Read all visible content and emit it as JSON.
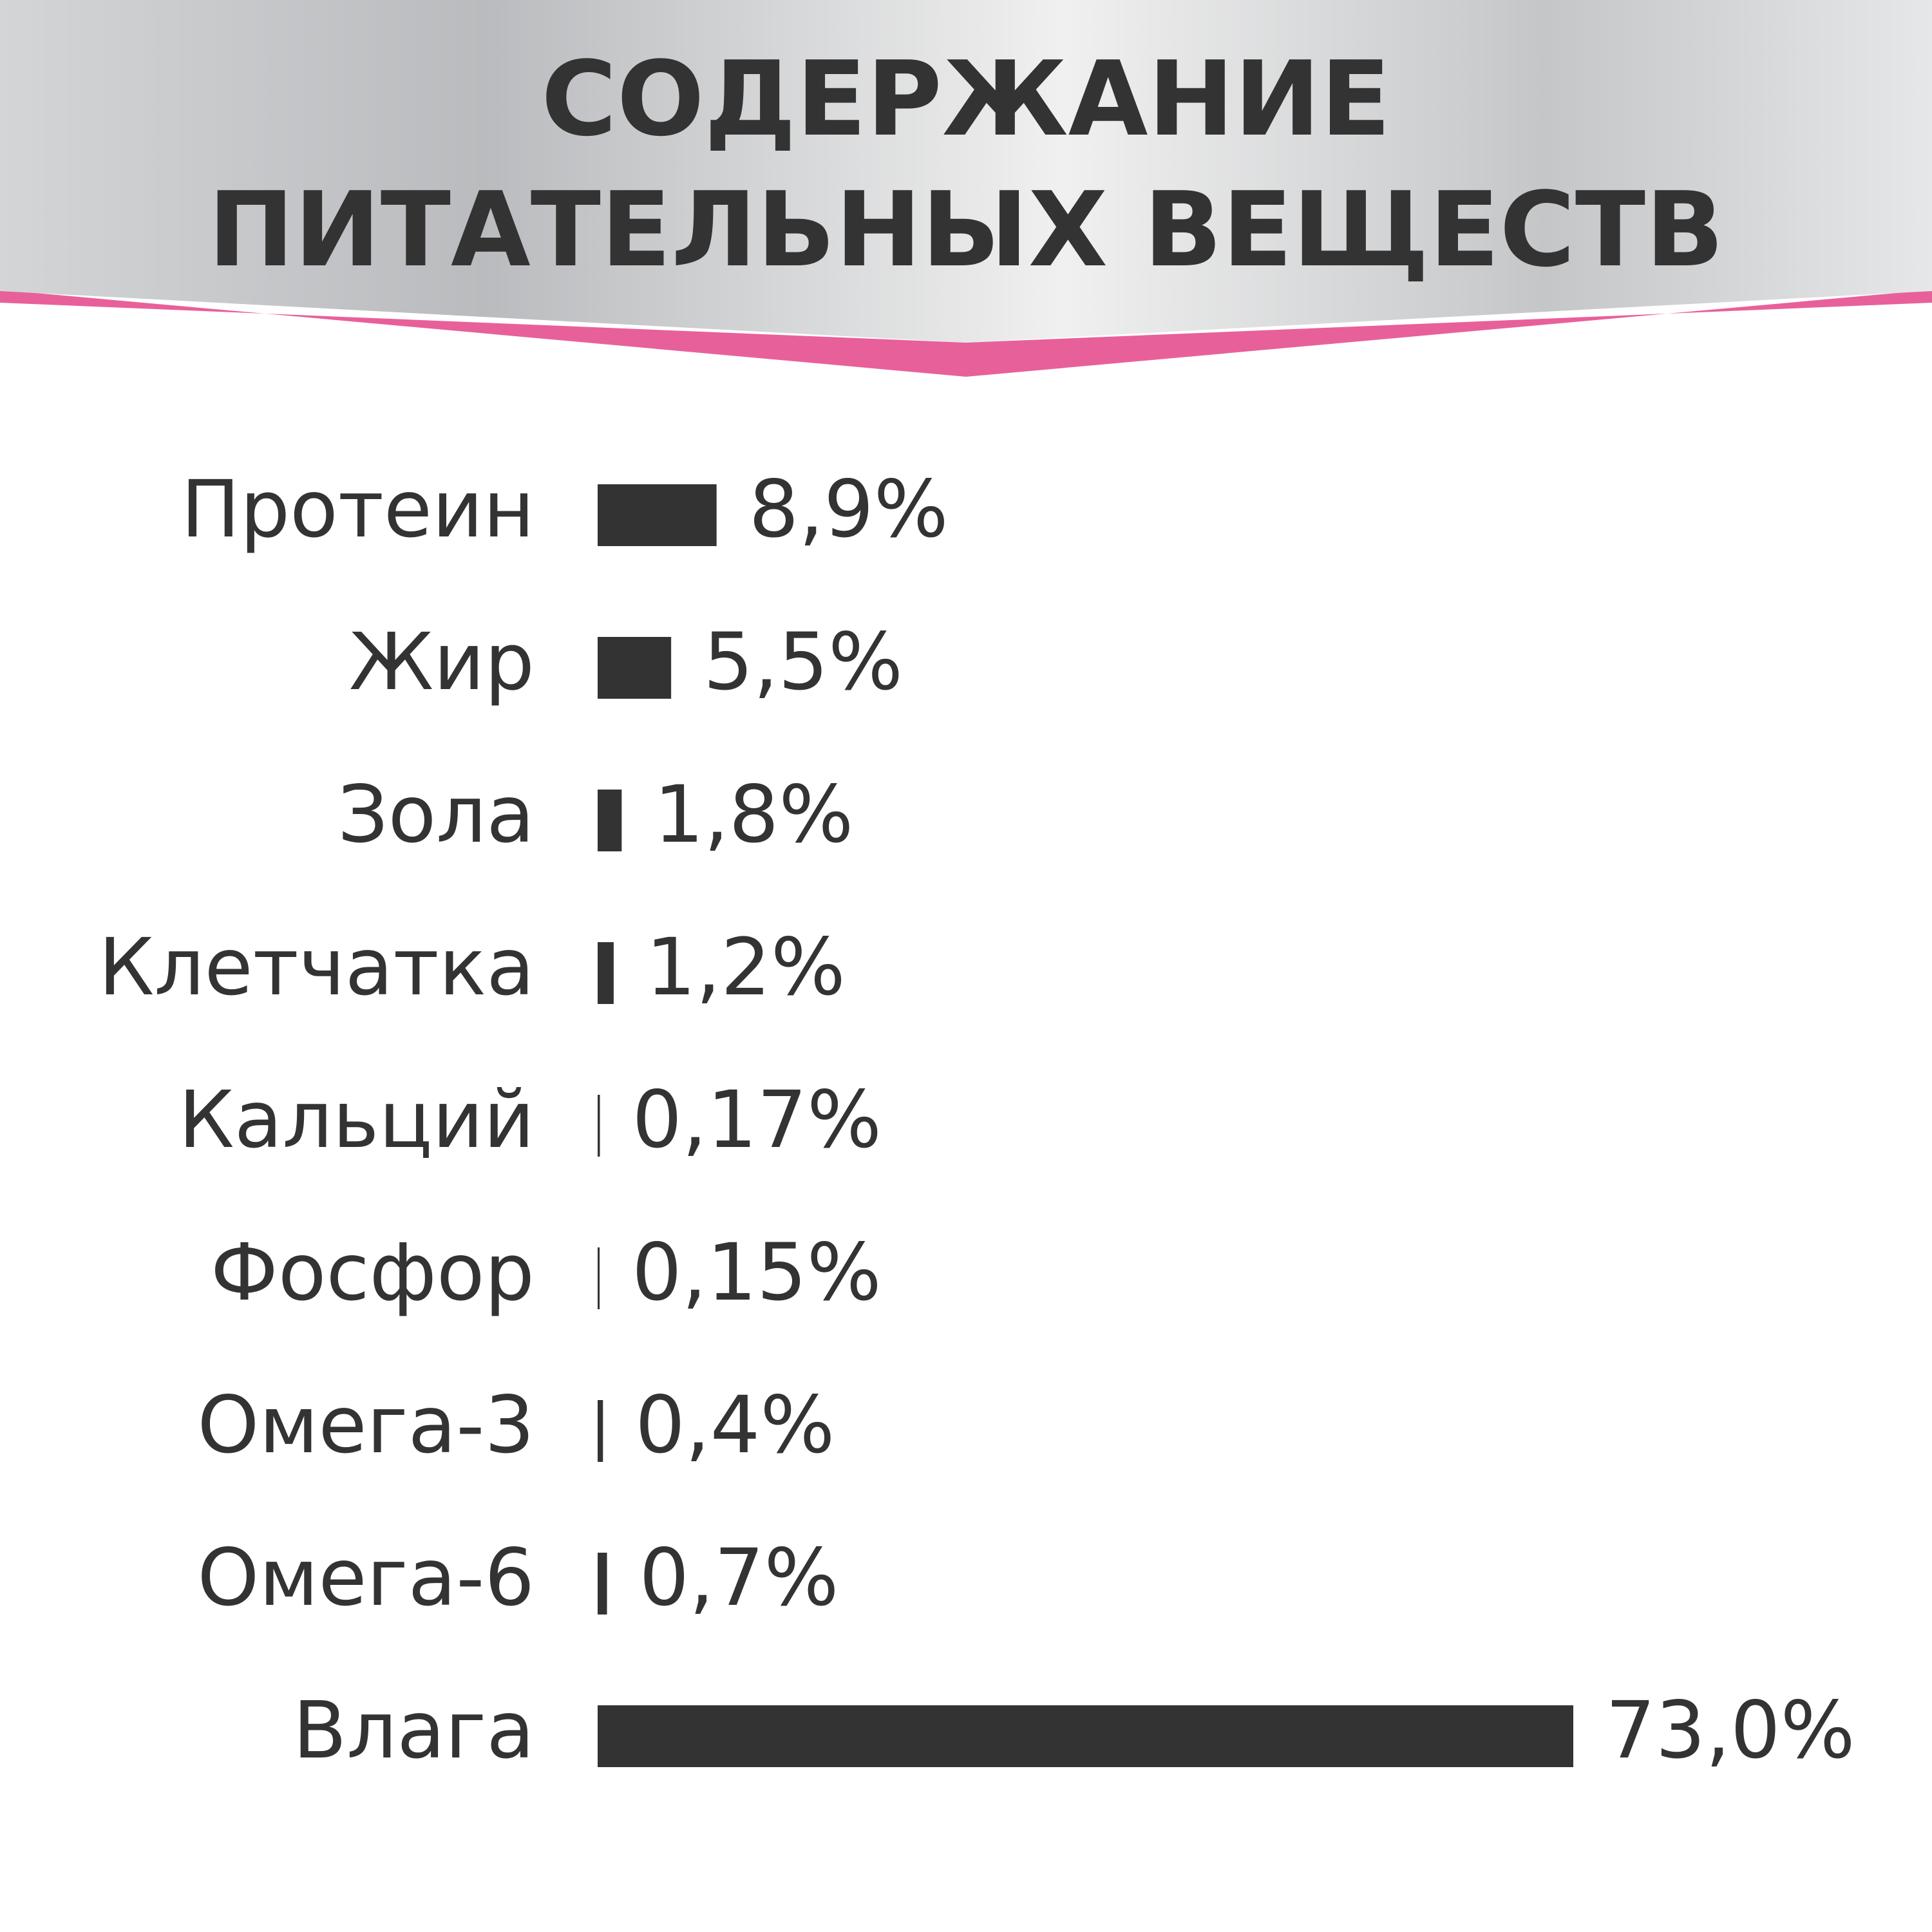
{
  "chart_data": {
    "type": "hbar",
    "title": [
      "СОДЕРЖАНИЕ",
      "ПИТАТЕЛЬНЫХ ВЕЩЕСТВ"
    ],
    "categories": [
      "Протеин",
      "Жир",
      "Зола",
      "Клетчатка",
      "Кальций",
      "Фосфор",
      "Омега-3",
      "Омега-6",
      "Влага"
    ],
    "values": [
      8.9,
      5.5,
      1.8,
      1.2,
      0.17,
      0.15,
      0.4,
      0.7,
      73.0
    ],
    "value_labels": [
      "8,9%",
      "5,5%",
      "1,8%",
      "1,2%",
      "0,17%",
      "0,15%",
      "0,4%",
      "0,7%",
      "73,0%"
    ],
    "color": "#333333"
  }
}
